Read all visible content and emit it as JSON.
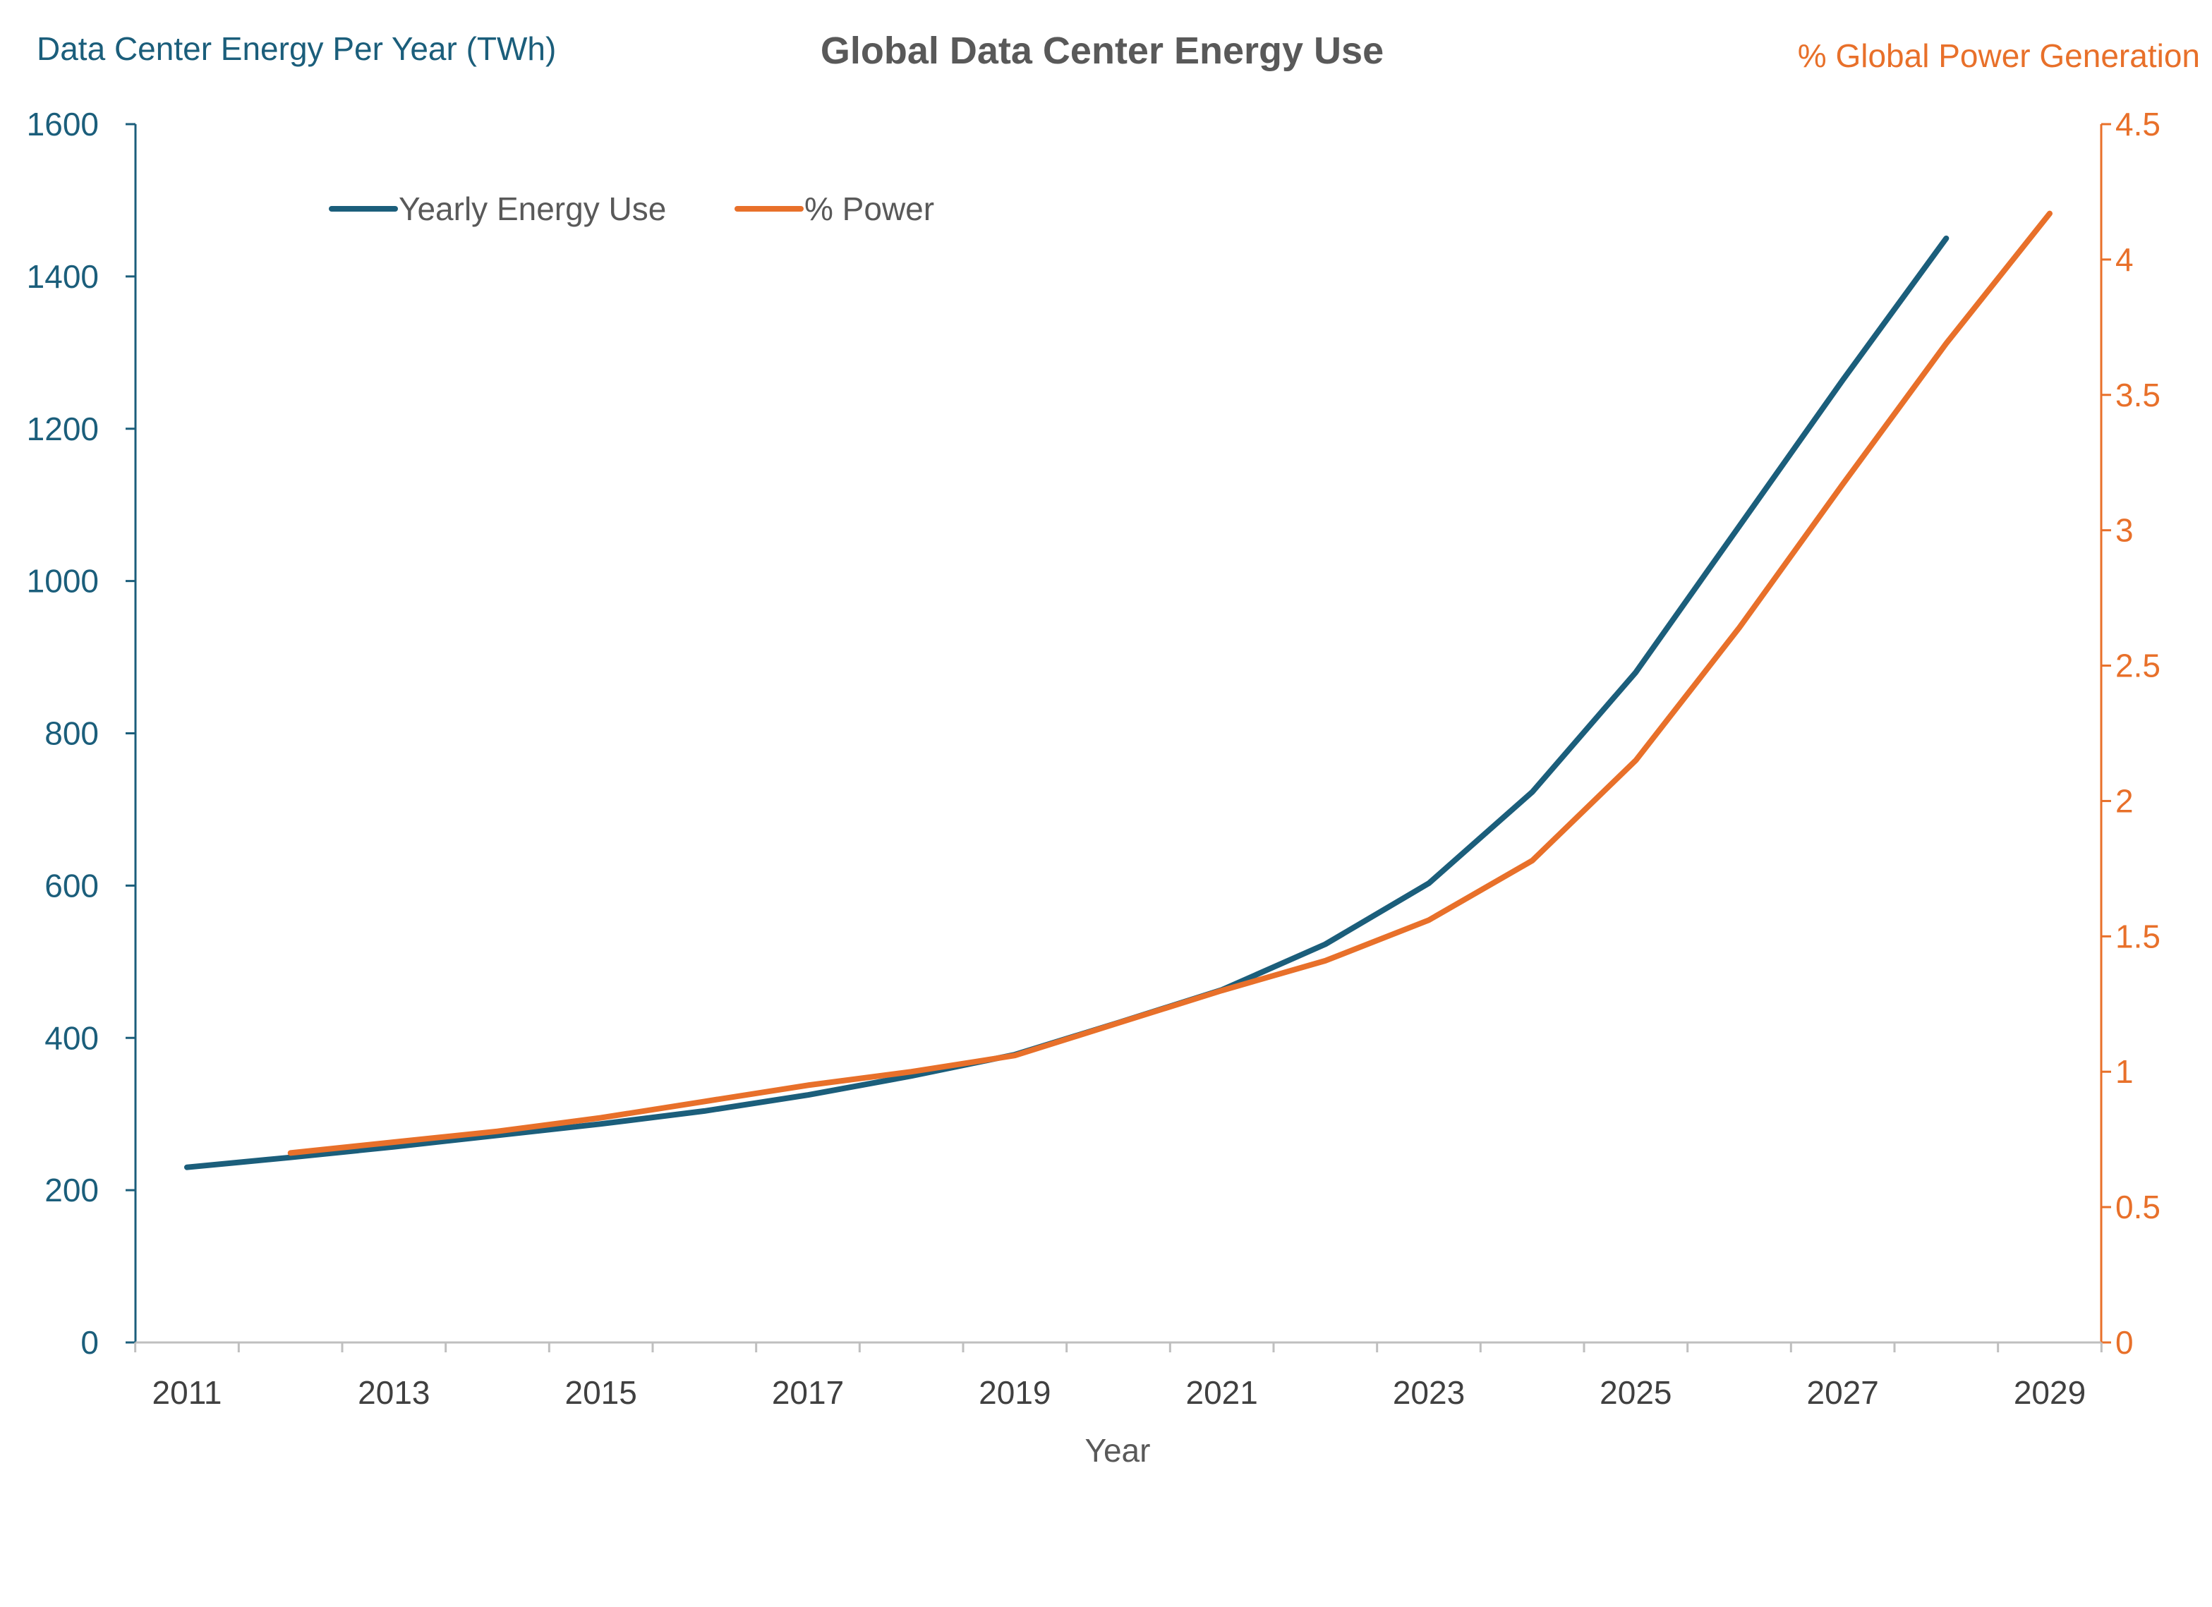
{
  "chart_data": {
    "type": "line",
    "title": "Global Data Center Energy Use",
    "xlabel": "Year",
    "ylabel_left": "Data Center Energy Per Year (TWh)",
    "ylabel_right": "% Global Power Generation",
    "x_range": [
      2011,
      2029
    ],
    "ylim_left": [
      0,
      1600
    ],
    "ylim_right": [
      0,
      4.5
    ],
    "x_ticks": [
      "2011",
      "2013",
      "2015",
      "2017",
      "2019",
      "2021",
      "2023",
      "2025",
      "2027",
      "2029"
    ],
    "y_ticks_left": [
      "0",
      "200",
      "400",
      "600",
      "800",
      "1000",
      "1200",
      "1400",
      "1600"
    ],
    "y_ticks_right": [
      "0",
      "0.5",
      "1",
      "1.5",
      "2",
      "2.5",
      "3",
      "3.5",
      "4",
      "4.5"
    ],
    "legend_position": "top-left",
    "series": [
      {
        "name": "Yearly Energy Use",
        "axis": "left",
        "color": "#1b5e7b",
        "x": [
          2011,
          2012,
          2013,
          2014,
          2015,
          2016,
          2017,
          2018,
          2019,
          2020,
          2021,
          2022,
          2023,
          2024,
          2025,
          2026,
          2027,
          2028
        ],
        "values": [
          230,
          243,
          257,
          272,
          287,
          304,
          325,
          350,
          378,
          420,
          463,
          523,
          603,
          723,
          880,
          1072,
          1264,
          1450
        ]
      },
      {
        "name": "% Power",
        "axis": "right",
        "color": "#e8702a",
        "x": [
          2012,
          2013,
          2014,
          2015,
          2016,
          2017,
          2018,
          2019,
          2020,
          2021,
          2022,
          2023,
          2024,
          2025,
          2026,
          2027,
          2028,
          2029
        ],
        "values": [
          0.7,
          0.74,
          0.78,
          0.83,
          0.89,
          0.95,
          1.0,
          1.06,
          1.18,
          1.3,
          1.41,
          1.56,
          1.78,
          2.15,
          2.64,
          3.17,
          3.69,
          4.17
        ]
      }
    ]
  }
}
